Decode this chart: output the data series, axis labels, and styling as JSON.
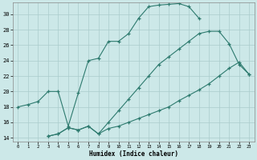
{
  "xlabel": "Humidex (Indice chaleur)",
  "bg_color": "#cce8e8",
  "grid_color": "#aacccc",
  "line_color": "#2d7a6e",
  "xlim": [
    -0.5,
    23.5
  ],
  "ylim": [
    13.5,
    31.5
  ],
  "yticks": [
    14,
    16,
    18,
    20,
    22,
    24,
    26,
    28,
    30
  ],
  "xticks": [
    0,
    1,
    2,
    3,
    4,
    5,
    6,
    7,
    8,
    9,
    10,
    11,
    12,
    13,
    14,
    15,
    16,
    17,
    18,
    19,
    20,
    21,
    22,
    23
  ],
  "curve1_x": [
    0,
    1,
    2,
    3,
    4,
    5,
    6,
    7,
    8,
    9,
    10,
    11,
    12,
    13,
    14,
    15,
    16,
    17,
    18
  ],
  "curve1_y": [
    18,
    18.3,
    18.7,
    20.0,
    20.0,
    15.5,
    19.8,
    24.0,
    24.3,
    26.5,
    26.5,
    27.5,
    29.5,
    31.0,
    31.2,
    31.3,
    31.4,
    31.0,
    29.5
  ],
  "curve2_x": [
    3,
    4,
    5,
    6,
    7,
    8,
    9,
    10,
    11,
    12,
    13,
    14,
    15,
    16,
    17,
    18,
    19,
    20,
    21,
    22,
    23
  ],
  "curve2_y": [
    14.2,
    14.5,
    15.3,
    15.0,
    15.5,
    14.5,
    16.0,
    17.5,
    19.0,
    20.5,
    22.0,
    23.5,
    24.5,
    25.5,
    26.5,
    27.5,
    27.8,
    27.8,
    26.2,
    23.5,
    22.2
  ],
  "curve3_x": [
    3,
    4,
    5,
    6,
    7,
    8,
    9,
    10,
    11,
    12,
    13,
    14,
    15,
    16,
    17,
    18,
    19,
    20,
    21,
    22,
    23
  ],
  "curve3_y": [
    14.2,
    14.5,
    15.3,
    15.0,
    15.5,
    14.5,
    15.2,
    15.5,
    16.0,
    16.5,
    17.0,
    17.5,
    18.0,
    18.8,
    19.5,
    20.2,
    21.0,
    22.0,
    23.0,
    23.8,
    22.2
  ]
}
